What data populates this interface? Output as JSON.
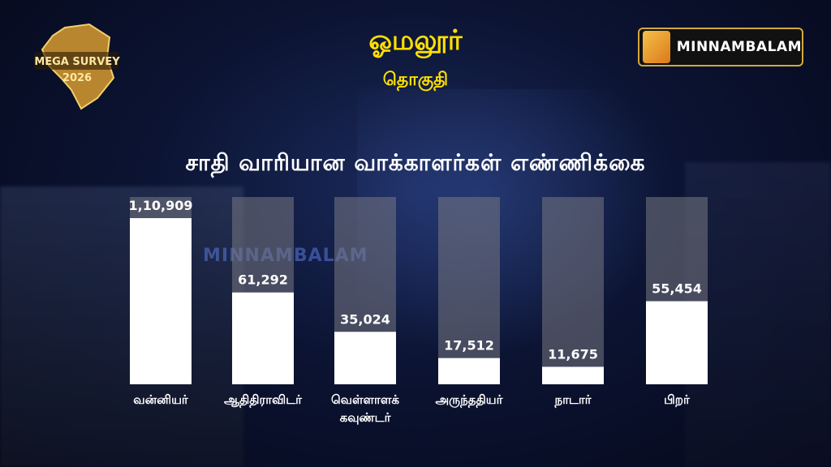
{
  "header": {
    "title": "ஓமலூர்",
    "subtitle": "தொகுதி",
    "left_logo": {
      "line1": "MEGA SURVEY",
      "line2": "2026"
    },
    "brand": "MINNAMBALAM",
    "watermark": "MINNAMBALAM"
  },
  "colors": {
    "title": "#ffe000",
    "bar_fill": "#ffffff",
    "bar_track": "#6e6e78",
    "brand_border": "#d4a83a"
  },
  "chart_data": {
    "type": "bar",
    "title": "சாதி வாரியான வாக்காளர்கள்  எண்ணிக்கை",
    "categories": [
      [
        "வன்னியர்"
      ],
      [
        "ஆதிதிராவிடர்"
      ],
      [
        "வெள்ளாளக்",
        "கவுண்டர்"
      ],
      [
        "அருந்ததியர்"
      ],
      [
        "நாடார்"
      ],
      [
        "பிறர்"
      ]
    ],
    "values": [
      110909,
      61292,
      35024,
      17512,
      11675,
      55454
    ],
    "value_labels": [
      "1,10,909",
      "61,292",
      "35,024",
      "17,512",
      "11,675",
      "55,454"
    ],
    "ylim": [
      0,
      125000
    ],
    "grid": false,
    "legend": "none"
  }
}
